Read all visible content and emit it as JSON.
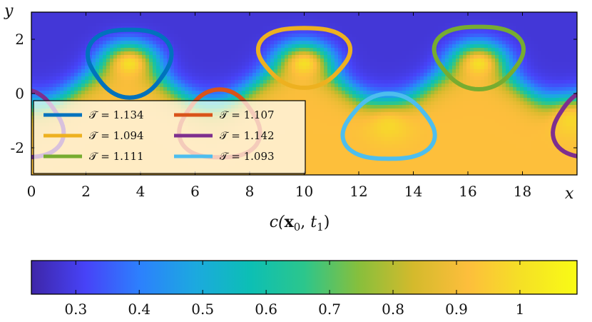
{
  "chart_data": [
    {
      "type": "heatmap",
      "title": "",
      "xlabel": "x",
      "ylabel": "y",
      "caption": "c(x₀, t₁)",
      "caption_parts": {
        "c": "c(",
        "bold": "x",
        "s1": "0",
        "mid": ", ",
        "t": "t",
        "s2": "1",
        "end": ")"
      },
      "xlim": [
        0,
        20
      ],
      "ylim": [
        -3,
        3
      ],
      "xticks": [
        0,
        2,
        4,
        6,
        8,
        10,
        12,
        14,
        16,
        18
      ],
      "yticks": [
        2,
        0,
        -2
      ],
      "xtick_labels": [
        "0",
        "2",
        "4",
        "6",
        "8",
        "10",
        "12",
        "14",
        "16",
        "18"
      ],
      "ytick_labels": [
        "2",
        "0",
        "-2"
      ],
      "field": {
        "upper_value": 0.28,
        "lower_value": 0.92,
        "interface_mean_y": 0.3,
        "interface_amplitude": 0.75,
        "interface_wavelength": 6.4,
        "interface_phase_x": 3.4,
        "blobs": [
          {
            "x": 3.6,
            "y": 1.1,
            "peak": 1.0
          },
          {
            "x": 10.0,
            "y": 1.1,
            "peak": 1.0
          },
          {
            "x": 16.4,
            "y": 1.1,
            "peak": 1.0
          },
          {
            "x": 13.1,
            "y": -1.2,
            "peak": 0.98
          },
          {
            "x": 19.8,
            "y": -1.0,
            "peak": 0.98
          }
        ]
      },
      "series": [
        {
          "name": "𝒯 = 1.134",
          "color": "#0072bd",
          "closed_curves": [
            {
              "cx": 3.6,
              "cy": 1.2,
              "rx": 1.5,
              "ry": 1.25,
              "shape": "tri-down"
            }
          ]
        },
        {
          "name": "𝒯 = 1.107",
          "color": "#d95319",
          "closed_curves": [
            {
              "cx": 6.9,
              "cy": -1.2,
              "rx": 1.45,
              "ry": 1.25,
              "shape": "tri-up"
            }
          ]
        },
        {
          "name": "𝒯 = 1.094",
          "color": "#edb120",
          "closed_curves": [
            {
              "cx": 10.0,
              "cy": 1.4,
              "rx": 1.65,
              "ry": 1.1,
              "shape": "tri-down"
            }
          ]
        },
        {
          "name": "𝒯 = 1.142",
          "color": "#7e2f8e",
          "closed_curves": [
            {
              "cx": -0.3,
              "cy": -1.2,
              "rx": 1.45,
              "ry": 1.25,
              "shape": "tri-up"
            },
            {
              "cx": 20.6,
              "cy": -1.2,
              "rx": 1.45,
              "ry": 1.25,
              "shape": "tri-up"
            }
          ]
        },
        {
          "name": "𝒯 = 1.111",
          "color": "#77ac30",
          "closed_curves": [
            {
              "cx": 16.4,
              "cy": 1.4,
              "rx": 1.6,
              "ry": 1.15,
              "shape": "tri-down"
            }
          ]
        },
        {
          "name": "𝒯 = 1.093",
          "color": "#4dbeee",
          "closed_curves": [
            {
              "cx": 13.1,
              "cy": -1.3,
              "rx": 1.65,
              "ry": 1.2,
              "shape": "tri-up"
            }
          ]
        }
      ],
      "legend_placement": "lower-left",
      "legend": [
        {
          "label": "𝒯 = 1.134",
          "color": "#0072bd"
        },
        {
          "label": "𝒯 = 1.107",
          "color": "#d95319"
        },
        {
          "label": "𝒯 = 1.094",
          "color": "#edb120"
        },
        {
          "label": "𝒯 = 1.142",
          "color": "#7e2f8e"
        },
        {
          "label": "𝒯 = 1.111",
          "color": "#77ac30"
        },
        {
          "label": "𝒯 = 1.093",
          "color": "#4dbeee"
        }
      ]
    },
    {
      "type": "colorbar",
      "range": [
        0.23,
        1.09
      ],
      "ticks": [
        0.3,
        0.4,
        0.5,
        0.6,
        0.7,
        0.8,
        0.9,
        1
      ],
      "tick_labels": [
        "0.3",
        "0.4",
        "0.5",
        "0.6",
        "0.7",
        "0.8",
        "0.9",
        "1"
      ],
      "colormap": [
        "#3e26a8",
        "#4743f8",
        "#2c81fd",
        "#1ca9df",
        "#0cbfb5",
        "#2cc68c",
        "#87bf3c",
        "#d4ba2c",
        "#fdbe3c",
        "#f5e125",
        "#f9fb15"
      ]
    }
  ]
}
